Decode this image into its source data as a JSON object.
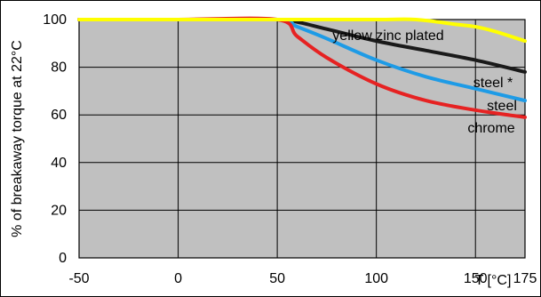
{
  "chart_data": {
    "type": "line",
    "title": "",
    "xlabel": "T [°C]",
    "ylabel": "% of breakaway torque at 22°C",
    "xlim": [
      -50,
      175
    ],
    "ylim": [
      0,
      100
    ],
    "x_ticks": [
      -50,
      0,
      50,
      100,
      150,
      175
    ],
    "y_ticks": [
      0,
      20,
      40,
      60,
      80,
      100
    ],
    "grid": true,
    "background": "#c0c0c0",
    "series": [
      {
        "name": "yellow zinc plated",
        "color": "#ffff00",
        "x": [
          -50,
          0,
          50,
          100,
          120,
          140,
          150,
          160,
          175
        ],
        "y": [
          100,
          100,
          100,
          100,
          100,
          98,
          97,
          95,
          91
        ]
      },
      {
        "name": "steel *",
        "color": "#1a1a1a",
        "x": [
          -50,
          0,
          50,
          60,
          75,
          100,
          125,
          150,
          175
        ],
        "y": [
          100,
          100,
          100,
          99,
          96,
          91,
          87,
          83,
          78
        ]
      },
      {
        "name": "steel",
        "color": "#1e9be6",
        "x": [
          -50,
          0,
          50,
          60,
          75,
          100,
          125,
          150,
          175
        ],
        "y": [
          100,
          100,
          100,
          97,
          92,
          83,
          76,
          71,
          66
        ]
      },
      {
        "name": "chrome",
        "color": "#e62222",
        "x": [
          -50,
          0,
          50,
          60,
          75,
          100,
          125,
          150,
          175
        ],
        "y": [
          100,
          100,
          100,
          93,
          84,
          73,
          66,
          62,
          59
        ]
      }
    ]
  }
}
